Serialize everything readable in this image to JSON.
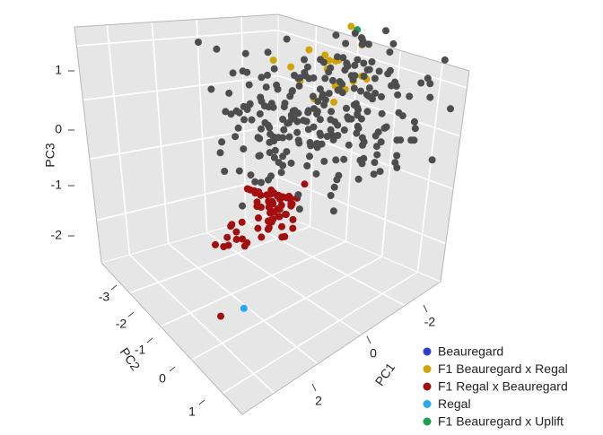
{
  "chart_data": {
    "type": "scatter",
    "subtype": "3d-scatter",
    "axes": {
      "x": {
        "label": "PC1",
        "ticks": [
          "-2",
          "0",
          "2"
        ]
      },
      "y": {
        "label": "PC2",
        "ticks": [
          "-3",
          "-2",
          "-1",
          "0",
          "1"
        ]
      },
      "z": {
        "label": "PC3",
        "ticks": [
          "1",
          "0",
          "-1",
          "-2"
        ]
      }
    },
    "grid": true,
    "background": "#e6e6e6",
    "legend": {
      "placement": "bottom-right",
      "entries": [
        {
          "name": "Beauregard",
          "color": "#2b3fcc"
        },
        {
          "name": "F1 Beauregard x Regal",
          "color": "#d1a406"
        },
        {
          "name": "F1 Regal x Beauregard",
          "color": "#a30e0e"
        },
        {
          "name": "Regal",
          "color": "#27a9ee"
        },
        {
          "name": "F1 Beauregard x Uplift",
          "color": "#1aa050"
        }
      ]
    },
    "other_color": "#4d4d4d",
    "clusters": [
      {
        "name": "Beauregard",
        "color": "#2b3fcc",
        "x": -3.0,
        "y": -2.9,
        "z": 1.2,
        "spread": [
          0.25,
          0.2,
          0.12
        ],
        "n": 4
      },
      {
        "name": "F1 Beauregard x Uplift",
        "color": "#1aa050",
        "x": -2.8,
        "y": -2.6,
        "z": 1.15,
        "spread": [
          0.45,
          0.35,
          0.12
        ],
        "n": 14
      },
      {
        "name": "F1 Beauregard x Regal",
        "color": "#d1a406",
        "x": -1.2,
        "y": -1.6,
        "z": 0.55,
        "spread": [
          0.5,
          0.4,
          0.25
        ],
        "n": 18
      },
      {
        "name": "F1 Regal x Beauregard",
        "color": "#a30e0e",
        "x": 0.6,
        "y": 0.3,
        "z": -1.2,
        "spread": [
          0.3,
          0.3,
          0.25
        ],
        "n": 55
      },
      {
        "name": "F1 Regal x Beauregard",
        "color": "#a30e0e",
        "x": 1.5,
        "y": 0.4,
        "z": -1.6,
        "spread": [
          0.2,
          0.2,
          0.15
        ],
        "n": 12
      },
      {
        "name": "Regal",
        "color": "#27a9ee",
        "x": 1.7,
        "y": 1.3,
        "z": -2.6,
        "spread": [
          0,
          0,
          0
        ],
        "n": 1
      },
      {
        "name": "F1 Regal x Beauregard",
        "color": "#a30e0e",
        "x": 2.2,
        "y": 1.2,
        "z": -2.7,
        "spread": [
          0,
          0,
          0
        ],
        "n": 1
      },
      {
        "name": "Other",
        "color": "#4d4d4d",
        "x": -0.9,
        "y": -1.0,
        "z": -0.1,
        "spread": [
          1.1,
          1.0,
          0.7
        ],
        "n": 260
      }
    ]
  }
}
